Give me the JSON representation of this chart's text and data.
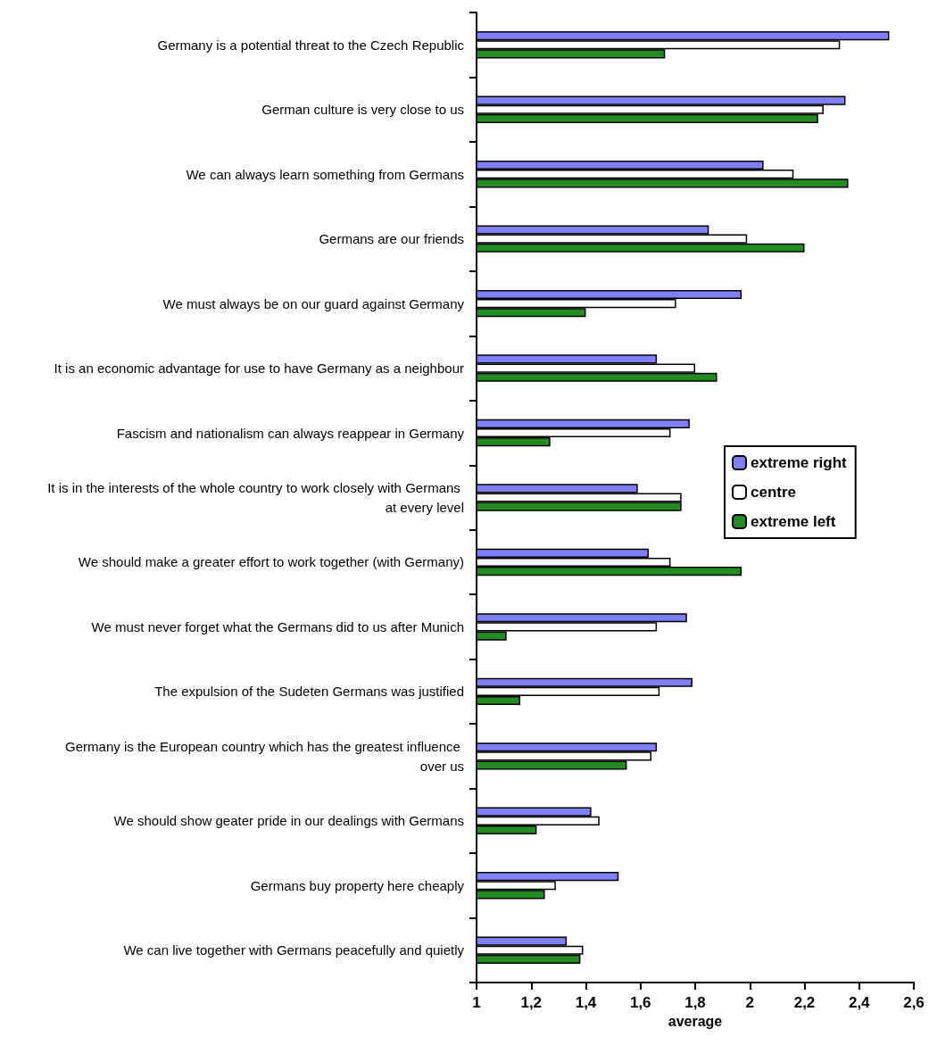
{
  "chart_data": {
    "type": "bar",
    "orientation": "horizontal",
    "xlabel": "average",
    "categories": [
      "Germany is a potential threat to the Czech Republic",
      "German culture is very close to us",
      "We can always learn something from Germans",
      "Germans are our friends",
      "We must always be on our guard against Germany",
      "It is an economic advantage for use to have Germany as a neighbour",
      "Fascism and nationalism can always reappear in Germany",
      "It is in the interests of the whole country to work closely with Germans at every level",
      "We should make a greater effort to work together (with Germany)",
      "We must never forget what the Germans did to us after Munich",
      "The expulsion of the Sudeten Germans was justified",
      "Germany is the European country which has the greatest influence over us",
      "We should show geater pride in our dealings with Germans",
      "Germans buy property here cheaply",
      "We can live together with Germans peacefully and quietly"
    ],
    "series": [
      {
        "name": "extreme right",
        "color": "#8080ff",
        "values": [
          2.51,
          2.35,
          2.05,
          1.85,
          1.97,
          1.66,
          1.78,
          1.59,
          1.63,
          1.77,
          1.79,
          1.66,
          1.42,
          1.52,
          1.33
        ]
      },
      {
        "name": "centre",
        "color": "#ffffff",
        "values": [
          2.33,
          2.27,
          2.16,
          1.99,
          1.73,
          1.8,
          1.71,
          1.75,
          1.71,
          1.66,
          1.67,
          1.64,
          1.45,
          1.29,
          1.39
        ]
      },
      {
        "name": "extreme left",
        "color": "#228b22",
        "values": [
          1.69,
          2.25,
          2.36,
          2.2,
          1.4,
          1.88,
          1.27,
          1.75,
          1.97,
          1.11,
          1.16,
          1.55,
          1.22,
          1.25,
          1.38
        ]
      }
    ],
    "xlim": [
      1,
      2.6
    ],
    "xticks": [
      1,
      {
        "value": 1.2,
        "label": "1,2"
      },
      {
        "value": 1.4,
        "label": "1,4"
      },
      {
        "value": 1.6,
        "label": "1,6"
      },
      {
        "value": 1.8,
        "label": "1,8"
      },
      2,
      {
        "value": 2.2,
        "label": "2,2"
      },
      {
        "value": 2.4,
        "label": "2,4"
      },
      {
        "value": 2.6,
        "label": "2,6"
      }
    ],
    "legend": "right",
    "grid": false
  }
}
